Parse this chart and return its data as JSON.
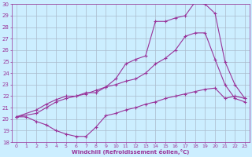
{
  "xlabel": "Windchill (Refroidissement éolien,°C)",
  "bg_color": "#cceeff",
  "grid_color": "#aabbcc",
  "line_color": "#993399",
  "xlim": [
    -0.5,
    23.5
  ],
  "ylim": [
    18,
    30
  ],
  "xticks": [
    0,
    1,
    2,
    3,
    4,
    5,
    6,
    7,
    8,
    9,
    10,
    11,
    12,
    13,
    14,
    15,
    16,
    17,
    18,
    19,
    20,
    21,
    22,
    23
  ],
  "yticks": [
    18,
    19,
    20,
    21,
    22,
    23,
    24,
    25,
    26,
    27,
    28,
    29,
    30
  ],
  "line1_x": [
    0,
    1,
    2,
    3,
    4,
    5,
    6,
    7,
    8,
    9,
    10,
    11,
    12,
    13,
    14,
    15,
    16,
    17,
    18,
    19,
    20,
    21,
    22,
    23
  ],
  "line1_y": [
    20.2,
    20.2,
    19.8,
    19.5,
    19.0,
    18.7,
    18.5,
    18.5,
    19.3,
    20.3,
    20.5,
    20.8,
    21.0,
    21.3,
    21.5,
    21.8,
    22.0,
    22.2,
    22.4,
    22.6,
    22.7,
    21.8,
    22.0,
    21.8
  ],
  "line2_x": [
    0,
    2,
    3,
    4,
    5,
    6,
    7,
    8,
    9,
    10,
    11,
    12,
    13,
    14,
    15,
    16,
    17,
    18,
    19,
    20,
    21,
    22,
    23
  ],
  "line2_y": [
    20.2,
    20.5,
    21.0,
    21.5,
    21.8,
    22.0,
    22.2,
    22.5,
    22.8,
    23.0,
    23.3,
    23.5,
    24.0,
    24.8,
    25.3,
    26.0,
    27.2,
    27.5,
    27.5,
    25.2,
    23.0,
    21.8,
    21.5
  ],
  "line3_x": [
    0,
    2,
    3,
    4,
    5,
    6,
    7,
    8,
    9,
    10,
    11,
    12,
    13,
    14,
    15,
    16,
    17,
    18,
    19,
    20,
    21,
    22,
    23
  ],
  "line3_y": [
    20.2,
    20.8,
    21.3,
    21.7,
    22.0,
    22.0,
    22.3,
    22.3,
    22.8,
    23.5,
    24.8,
    25.2,
    25.5,
    28.5,
    28.5,
    28.8,
    29.0,
    30.2,
    30.0,
    29.2,
    25.0,
    23.0,
    21.8
  ]
}
